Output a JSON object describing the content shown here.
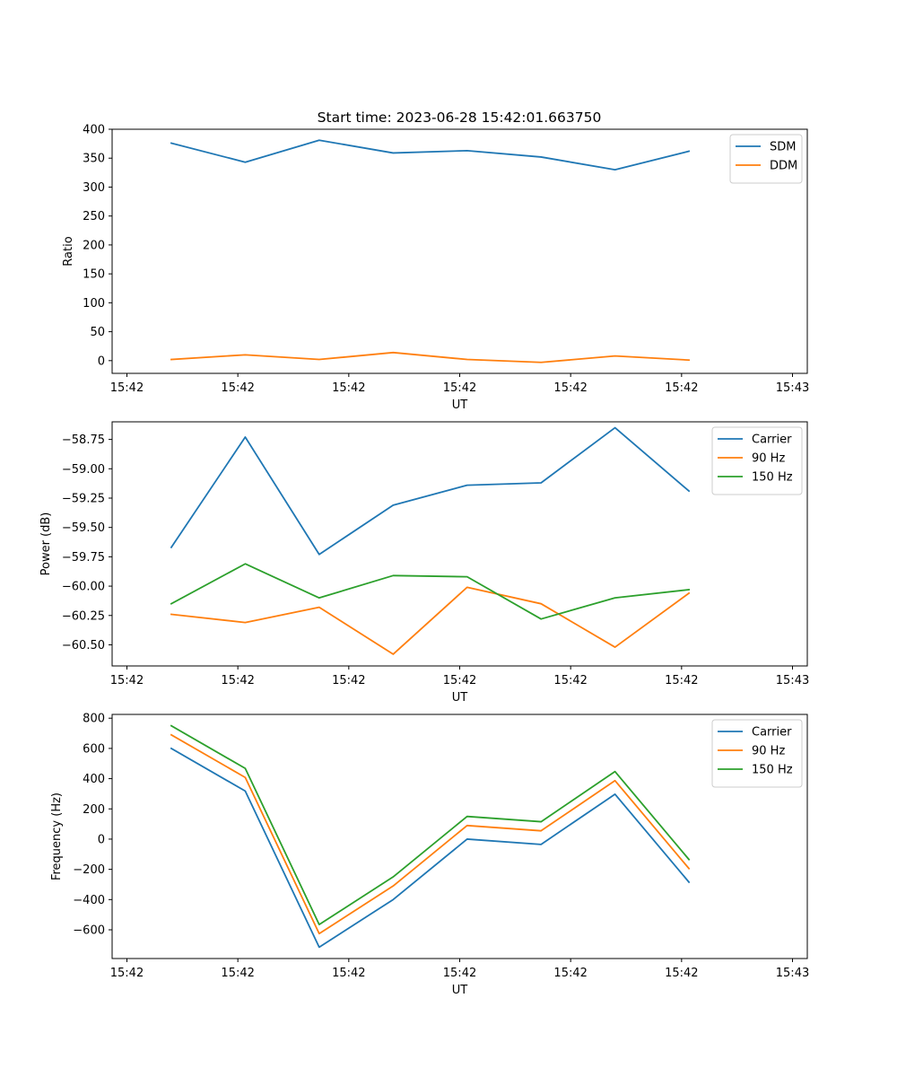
{
  "figure": {
    "title": "Start time: 2023-06-28 15:42:01.663750"
  },
  "chart_data": [
    {
      "type": "line",
      "title": "Start time: 2023-06-28 15:42:01.663750",
      "xlabel": "UT",
      "ylabel": "Ratio",
      "x": [
        1,
        2,
        3,
        4,
        5,
        6,
        7,
        8
      ],
      "xlim": [
        0.2,
        9.6
      ],
      "x_ticks": [
        {
          "x": 0.4,
          "label": "15:42"
        },
        {
          "x": 1.9,
          "label": "15:42"
        },
        {
          "x": 3.4,
          "label": "15:42"
        },
        {
          "x": 4.9,
          "label": "15:42"
        },
        {
          "x": 6.4,
          "label": "15:42"
        },
        {
          "x": 7.9,
          "label": "15:42"
        },
        {
          "x": 9.4,
          "label": "15:43"
        }
      ],
      "ylim": [
        -22,
        400
      ],
      "y_ticks": [
        0,
        50,
        100,
        150,
        200,
        250,
        300,
        350,
        400
      ],
      "grid": false,
      "legend_position": "top-right",
      "series": [
        {
          "name": "SDM",
          "color": "#1f77b4",
          "values": [
            376,
            343,
            381,
            359,
            363,
            352,
            330,
            362
          ]
        },
        {
          "name": "DDM",
          "color": "#ff7f0e",
          "values": [
            2,
            10,
            2,
            14,
            2,
            -3,
            8,
            1
          ]
        }
      ]
    },
    {
      "type": "line",
      "xlabel": "UT",
      "ylabel": "Power (dB)",
      "x": [
        1,
        2,
        3,
        4,
        5,
        6,
        7,
        8
      ],
      "xlim": [
        0.2,
        9.6
      ],
      "x_ticks": [
        {
          "x": 0.4,
          "label": "15:42"
        },
        {
          "x": 1.9,
          "label": "15:42"
        },
        {
          "x": 3.4,
          "label": "15:42"
        },
        {
          "x": 4.9,
          "label": "15:42"
        },
        {
          "x": 6.4,
          "label": "15:42"
        },
        {
          "x": 7.9,
          "label": "15:42"
        },
        {
          "x": 9.4,
          "label": "15:43"
        }
      ],
      "ylim": [
        -60.68,
        -58.6
      ],
      "y_ticks": [
        {
          "value": -58.75,
          "label": "−58.75"
        },
        {
          "value": -59.0,
          "label": "−59.00"
        },
        {
          "value": -59.25,
          "label": "−59.25"
        },
        {
          "value": -59.5,
          "label": "−59.50"
        },
        {
          "value": -59.75,
          "label": "−59.75"
        },
        {
          "value": -60.0,
          "label": "−60.00"
        },
        {
          "value": -60.25,
          "label": "−60.25"
        },
        {
          "value": -60.5,
          "label": "−60.50"
        }
      ],
      "grid": false,
      "legend_position": "top-right",
      "series": [
        {
          "name": "Carrier",
          "color": "#1f77b4",
          "values": [
            -59.67,
            -58.73,
            -59.73,
            -59.31,
            -59.14,
            -59.12,
            -58.65,
            -59.19
          ]
        },
        {
          "name": "90 Hz",
          "color": "#ff7f0e",
          "values": [
            -60.24,
            -60.31,
            -60.18,
            -60.58,
            -60.01,
            -60.15,
            -60.52,
            -60.06
          ]
        },
        {
          "name": "150 Hz",
          "color": "#2ca02c",
          "values": [
            -60.15,
            -59.81,
            -60.1,
            -59.91,
            -59.92,
            -60.28,
            -60.1,
            -60.03
          ]
        }
      ]
    },
    {
      "type": "line",
      "xlabel": "UT",
      "ylabel": "Frequency (Hz)",
      "x": [
        1,
        2,
        3,
        4,
        5,
        6,
        7,
        8
      ],
      "xlim": [
        0.2,
        9.6
      ],
      "x_ticks": [
        {
          "x": 0.4,
          "label": "15:42"
        },
        {
          "x": 1.9,
          "label": "15:42"
        },
        {
          "x": 3.4,
          "label": "15:42"
        },
        {
          "x": 4.9,
          "label": "15:42"
        },
        {
          "x": 6.4,
          "label": "15:42"
        },
        {
          "x": 7.9,
          "label": "15:42"
        },
        {
          "x": 9.4,
          "label": "15:43"
        }
      ],
      "ylim": [
        -790,
        825
      ],
      "y_ticks": [
        {
          "value": -600,
          "label": "−600"
        },
        {
          "value": -400,
          "label": "−400"
        },
        {
          "value": -200,
          "label": "−200"
        },
        {
          "value": 0,
          "label": "0"
        },
        {
          "value": 200,
          "label": "200"
        },
        {
          "value": 400,
          "label": "400"
        },
        {
          "value": 600,
          "label": "600"
        },
        {
          "value": 800,
          "label": "800"
        }
      ],
      "grid": false,
      "legend_position": "top-right",
      "series": [
        {
          "name": "Carrier",
          "color": "#1f77b4",
          "values": [
            600,
            318,
            -715,
            -400,
            0,
            -35,
            297,
            -285
          ]
        },
        {
          "name": "90 Hz",
          "color": "#ff7f0e",
          "values": [
            690,
            408,
            -625,
            -310,
            90,
            55,
            387,
            -195
          ]
        },
        {
          "name": "150 Hz",
          "color": "#2ca02c",
          "values": [
            750,
            468,
            -565,
            -250,
            150,
            115,
            447,
            -135
          ]
        }
      ]
    }
  ]
}
